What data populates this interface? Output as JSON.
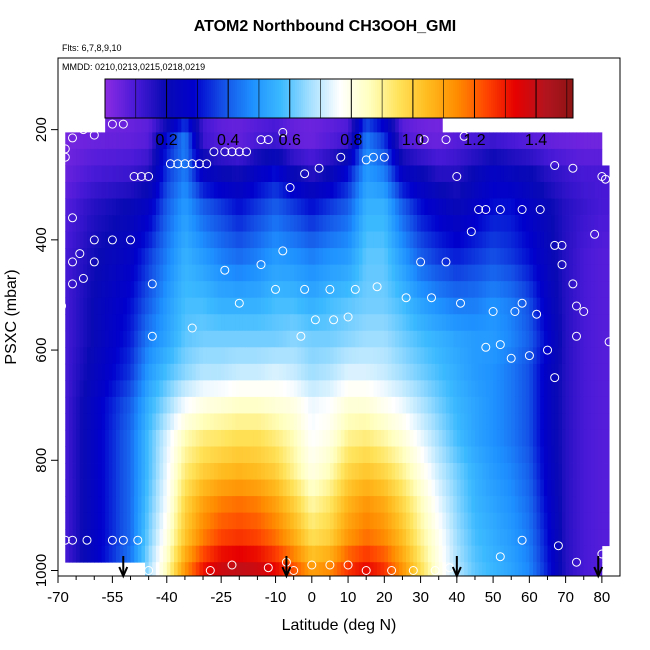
{
  "chart_data": {
    "type": "heatmap",
    "title": "ATOM2 Northbound CH3OOH_GMI",
    "flights_label": "Flts: 6,7,8,9,10",
    "dates_label": "MMDD: 0210,0213,0215,0218,0219",
    "xlabel": "Latitude (deg N)",
    "ylabel": "PSXC (mbar)",
    "x_ticks": [
      -70,
      -55,
      -40,
      -25,
      -10,
      0,
      10,
      20,
      30,
      40,
      50,
      60,
      70,
      80
    ],
    "x_minor_ticks": [
      -65,
      -60,
      -50,
      -45,
      -35,
      -30,
      -20,
      -15,
      -5,
      5,
      15,
      25,
      35,
      45,
      55,
      65,
      75
    ],
    "y_ticks": [
      200,
      400,
      600,
      800,
      1000
    ],
    "xlim": [
      -70,
      85
    ],
    "ylim": [
      1010,
      70
    ],
    "colorbar": {
      "range": [
        0.0,
        1.52
      ],
      "ticks": [
        "0.2",
        "0.4",
        "0.6",
        "0.8",
        "1.0",
        "1.2",
        "1.4"
      ],
      "tick_values": [
        0.2,
        0.4,
        0.6,
        0.8,
        1.0,
        1.2,
        1.4
      ],
      "colors": [
        "#8a2be2",
        "#4a1ad8",
        "#0a0ab4",
        "#0000cd",
        "#1450e6",
        "#1e90ff",
        "#3cbaff",
        "#a6e0ff",
        "#ffffff",
        "#ffffc0",
        "#ffe35a",
        "#ffbb1e",
        "#ff8c00",
        "#ff4500",
        "#e60000",
        "#b4141e",
        "#8c1414"
      ]
    },
    "pressure_levels": [
      160,
      190,
      220,
      250,
      280,
      310,
      340,
      370,
      400,
      430,
      460,
      490,
      520,
      550,
      580,
      610,
      640,
      670,
      700,
      730,
      760,
      790,
      820,
      850,
      880,
      910,
      940,
      970,
      1000
    ],
    "level_extent": {
      "160": [
        -57,
        36
      ],
      "190": [
        -57,
        36
      ],
      "220": [
        -68,
        80
      ],
      "250": [
        -68,
        80
      ],
      "280": [
        -68,
        82
      ],
      "310": [
        -68,
        82
      ],
      "970": [
        -68,
        80
      ],
      "1000": [
        -46,
        80
      ]
    },
    "default_extent": [
      -68,
      82
    ],
    "anchors_lat": [
      -68,
      -60,
      -50,
      -45,
      -40,
      -35,
      -30,
      -25,
      -20,
      -15,
      -10,
      -5,
      0,
      5,
      10,
      15,
      20,
      25,
      30,
      35,
      40,
      45,
      50,
      55,
      60,
      65,
      70,
      75,
      80,
      82
    ],
    "anchors_level": [
      {
        "p": 160,
        "v": [
          0.02,
          0.02,
          0.04,
          0.06,
          0.08,
          0.25,
          0.1,
          0.05,
          0.05,
          0.06,
          0.08,
          0.05,
          0.04,
          0.05,
          0.06,
          0.3,
          0.2,
          0.05,
          0.03,
          0.02,
          0.02,
          0.02,
          0.02,
          0.02,
          0.02,
          0.02,
          0.02,
          0.02,
          0.02,
          0.02
        ]
      },
      {
        "p": 220,
        "v": [
          0.03,
          0.05,
          0.06,
          0.08,
          0.3,
          0.45,
          0.12,
          0.08,
          0.06,
          0.1,
          0.12,
          0.06,
          0.05,
          0.08,
          0.12,
          0.45,
          0.35,
          0.1,
          0.06,
          0.05,
          0.08,
          0.1,
          0.12,
          0.1,
          0.08,
          0.06,
          0.05,
          0.04,
          0.04,
          0.04
        ]
      },
      {
        "p": 280,
        "v": [
          0.05,
          0.1,
          0.12,
          0.15,
          0.35,
          0.45,
          0.25,
          0.2,
          0.18,
          0.25,
          0.3,
          0.2,
          0.15,
          0.2,
          0.3,
          0.5,
          0.45,
          0.25,
          0.2,
          0.15,
          0.15,
          0.2,
          0.25,
          0.22,
          0.2,
          0.15,
          0.12,
          0.1,
          0.1,
          0.1
        ]
      },
      {
        "p": 340,
        "v": [
          0.08,
          0.15,
          0.2,
          0.25,
          0.4,
          0.5,
          0.4,
          0.35,
          0.3,
          0.35,
          0.4,
          0.35,
          0.3,
          0.35,
          0.4,
          0.55,
          0.55,
          0.4,
          0.3,
          0.25,
          0.2,
          0.25,
          0.3,
          0.3,
          0.25,
          0.2,
          0.15,
          0.12,
          0.1,
          0.1
        ]
      },
      {
        "p": 430,
        "v": [
          0.1,
          0.18,
          0.25,
          0.35,
          0.45,
          0.55,
          0.5,
          0.45,
          0.42,
          0.45,
          0.5,
          0.48,
          0.45,
          0.48,
          0.5,
          0.6,
          0.6,
          0.5,
          0.4,
          0.35,
          0.32,
          0.35,
          0.38,
          0.35,
          0.3,
          0.22,
          0.15,
          0.1,
          0.08,
          0.08
        ]
      },
      {
        "p": 520,
        "v": [
          0.1,
          0.2,
          0.3,
          0.4,
          0.5,
          0.58,
          0.58,
          0.55,
          0.55,
          0.55,
          0.58,
          0.58,
          0.55,
          0.58,
          0.6,
          0.62,
          0.62,
          0.58,
          0.52,
          0.48,
          0.45,
          0.45,
          0.48,
          0.45,
          0.38,
          0.25,
          0.15,
          0.1,
          0.08,
          0.08
        ]
      },
      {
        "p": 580,
        "v": [
          0.1,
          0.2,
          0.32,
          0.45,
          0.52,
          0.6,
          0.62,
          0.62,
          0.62,
          0.62,
          0.62,
          0.64,
          0.62,
          0.62,
          0.64,
          0.66,
          0.66,
          0.62,
          0.58,
          0.55,
          0.52,
          0.5,
          0.5,
          0.46,
          0.4,
          0.28,
          0.15,
          0.1,
          0.08,
          0.08
        ]
      },
      {
        "p": 640,
        "v": [
          0.1,
          0.22,
          0.35,
          0.5,
          0.58,
          0.64,
          0.68,
          0.68,
          0.7,
          0.7,
          0.72,
          0.7,
          0.66,
          0.68,
          0.72,
          0.72,
          0.7,
          0.66,
          0.62,
          0.58,
          0.54,
          0.5,
          0.48,
          0.44,
          0.38,
          0.25,
          0.15,
          0.1,
          0.08,
          0.08
        ]
      },
      {
        "p": 700,
        "v": [
          0.1,
          0.25,
          0.4,
          0.55,
          0.65,
          0.75,
          0.8,
          0.82,
          0.84,
          0.84,
          0.82,
          0.8,
          0.74,
          0.76,
          0.82,
          0.82,
          0.78,
          0.74,
          0.68,
          0.62,
          0.56,
          0.52,
          0.48,
          0.44,
          0.38,
          0.25,
          0.15,
          0.1,
          0.08,
          0.08
        ]
      },
      {
        "p": 760,
        "v": [
          0.1,
          0.25,
          0.42,
          0.58,
          0.72,
          0.86,
          0.92,
          0.94,
          0.96,
          0.96,
          0.92,
          0.86,
          0.76,
          0.8,
          0.9,
          0.92,
          0.88,
          0.82,
          0.74,
          0.66,
          0.58,
          0.52,
          0.48,
          0.44,
          0.38,
          0.25,
          0.15,
          0.1,
          0.08,
          0.08
        ]
      },
      {
        "p": 820,
        "v": [
          0.1,
          0.25,
          0.42,
          0.58,
          0.74,
          0.92,
          1.0,
          1.04,
          1.06,
          1.04,
          1.0,
          0.9,
          0.8,
          0.86,
          0.98,
          1.02,
          0.98,
          0.9,
          0.8,
          0.7,
          0.62,
          0.55,
          0.5,
          0.46,
          0.4,
          0.26,
          0.15,
          0.1,
          0.08,
          0.08
        ]
      },
      {
        "p": 880,
        "v": [
          0.1,
          0.25,
          0.42,
          0.6,
          0.76,
          0.98,
          1.1,
          1.16,
          1.18,
          1.16,
          1.1,
          1.0,
          0.88,
          0.94,
          1.06,
          1.12,
          1.08,
          0.98,
          0.86,
          0.74,
          0.64,
          0.56,
          0.52,
          0.48,
          0.42,
          0.28,
          0.15,
          0.1,
          0.08,
          0.08
        ]
      },
      {
        "p": 940,
        "v": [
          0.1,
          0.25,
          0.42,
          0.62,
          0.8,
          1.02,
          1.16,
          1.24,
          1.26,
          1.24,
          1.18,
          1.08,
          0.96,
          1.0,
          1.12,
          1.18,
          1.14,
          1.04,
          0.9,
          0.78,
          0.66,
          0.58,
          0.54,
          0.5,
          0.44,
          0.3,
          0.15,
          0.1,
          0.08,
          0.08
        ]
      },
      {
        "p": 1000,
        "v": [
          0.1,
          0.25,
          0.45,
          0.66,
          0.86,
          1.12,
          1.3,
          1.38,
          1.4,
          1.38,
          1.32,
          1.22,
          1.1,
          1.14,
          1.26,
          1.32,
          1.26,
          1.12,
          0.96,
          0.8,
          0.68,
          0.6,
          0.56,
          0.52,
          0.46,
          0.32,
          0.15,
          0.1,
          0.08,
          0.08
        ]
      }
    ],
    "obs_points": [
      [
        -55,
        190
      ],
      [
        -52,
        190
      ],
      [
        -63,
        200
      ],
      [
        -60,
        210
      ],
      [
        -66,
        215
      ],
      [
        -68,
        235
      ],
      [
        -68,
        250
      ],
      [
        -49,
        285
      ],
      [
        -47,
        285
      ],
      [
        -45,
        285
      ],
      [
        -39,
        262
      ],
      [
        -37,
        262
      ],
      [
        -35,
        262
      ],
      [
        -33,
        262
      ],
      [
        -31,
        262
      ],
      [
        -29,
        262
      ],
      [
        -27,
        240
      ],
      [
        -24,
        240
      ],
      [
        -22,
        240
      ],
      [
        -20,
        240
      ],
      [
        -18,
        240
      ],
      [
        -14,
        218
      ],
      [
        -12,
        218
      ],
      [
        -8,
        205
      ],
      [
        -6,
        305
      ],
      [
        -2,
        280
      ],
      [
        2,
        270
      ],
      [
        8,
        250
      ],
      [
        15,
        255
      ],
      [
        17,
        250
      ],
      [
        20,
        250
      ],
      [
        31,
        218
      ],
      [
        37,
        218
      ],
      [
        42,
        212
      ],
      [
        40,
        285
      ],
      [
        46,
        345
      ],
      [
        48,
        345
      ],
      [
        52,
        345
      ],
      [
        58,
        345
      ],
      [
        63,
        345
      ],
      [
        67,
        265
      ],
      [
        72,
        270
      ],
      [
        80,
        285
      ],
      [
        81,
        290
      ],
      [
        -66,
        360
      ],
      [
        -60,
        400
      ],
      [
        -55,
        400
      ],
      [
        -50,
        400
      ],
      [
        -66,
        440
      ],
      [
        -64,
        425
      ],
      [
        -60,
        440
      ],
      [
        -66,
        480
      ],
      [
        -63,
        470
      ],
      [
        -69,
        520
      ],
      [
        -8,
        420
      ],
      [
        -14,
        445
      ],
      [
        -24,
        455
      ],
      [
        -44,
        480
      ],
      [
        -33,
        560
      ],
      [
        -44,
        575
      ],
      [
        -20,
        515
      ],
      [
        -10,
        490
      ],
      [
        -2,
        490
      ],
      [
        5,
        490
      ],
      [
        12,
        490
      ],
      [
        18,
        485
      ],
      [
        26,
        505
      ],
      [
        33,
        505
      ],
      [
        41,
        515
      ],
      [
        1,
        545
      ],
      [
        6,
        545
      ],
      [
        10,
        540
      ],
      [
        -3,
        575
      ],
      [
        30,
        440
      ],
      [
        37,
        440
      ],
      [
        44,
        385
      ],
      [
        67,
        410
      ],
      [
        69,
        410
      ],
      [
        69,
        445
      ],
      [
        72,
        480
      ],
      [
        78,
        390
      ],
      [
        73,
        520
      ],
      [
        75,
        530
      ],
      [
        50,
        530
      ],
      [
        56,
        530
      ],
      [
        58,
        515
      ],
      [
        62,
        535
      ],
      [
        48,
        595
      ],
      [
        52,
        590
      ],
      [
        55,
        615
      ],
      [
        60,
        610
      ],
      [
        65,
        600
      ],
      [
        67,
        650
      ],
      [
        73,
        575
      ],
      [
        82,
        585
      ],
      [
        -68,
        945
      ],
      [
        -66,
        945
      ],
      [
        -62,
        945
      ],
      [
        -55,
        945
      ],
      [
        -52,
        945
      ],
      [
        -48,
        945
      ],
      [
        -45,
        1000
      ],
      [
        -28,
        1000
      ],
      [
        -22,
        990
      ],
      [
        -12,
        995
      ],
      [
        -7,
        985
      ],
      [
        -5,
        1000
      ],
      [
        0,
        990
      ],
      [
        5,
        990
      ],
      [
        10,
        990
      ],
      [
        15,
        1000
      ],
      [
        22,
        1000
      ],
      [
        28,
        1000
      ],
      [
        34,
        1000
      ],
      [
        38,
        995
      ],
      [
        52,
        975
      ],
      [
        58,
        945
      ],
      [
        68,
        955
      ],
      [
        73,
        985
      ],
      [
        80,
        970
      ]
    ],
    "arrows_lat": [
      -52,
      -7,
      40,
      79
    ]
  }
}
